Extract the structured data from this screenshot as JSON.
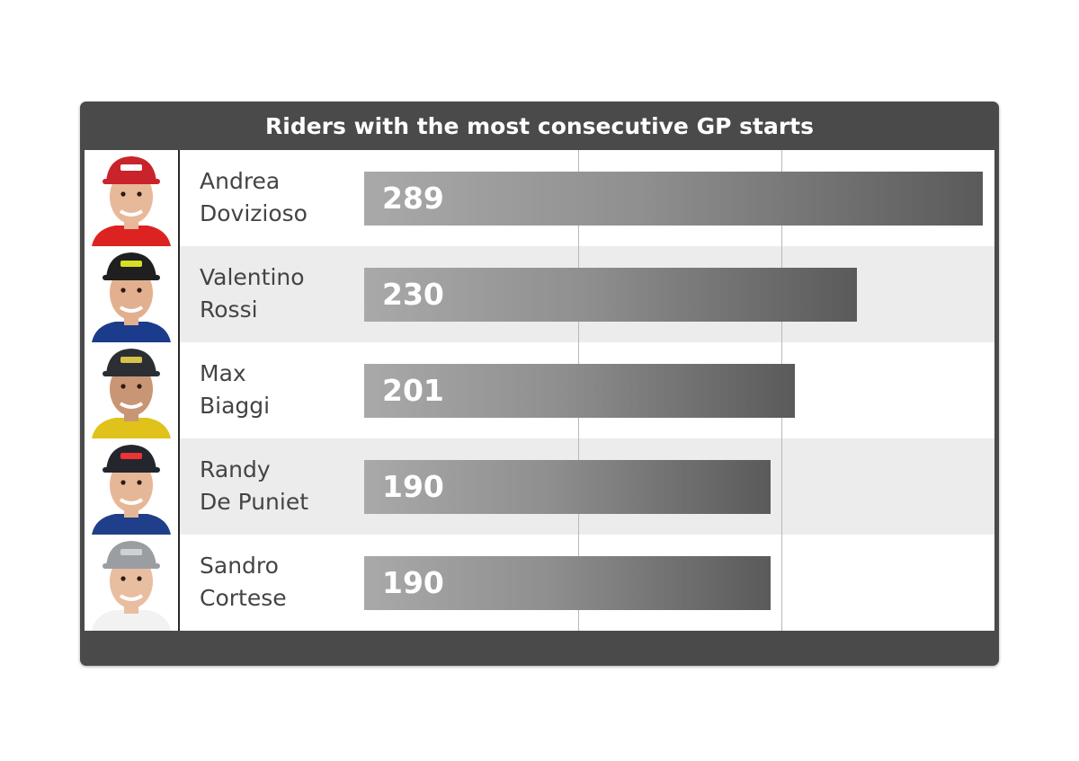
{
  "chart_data": {
    "type": "bar",
    "orientation": "horizontal",
    "title": "Riders with the most consecutive GP starts",
    "categories": [
      {
        "line1": "Andrea",
        "line2": "Dovizioso"
      },
      {
        "line1": "Valentino",
        "line2": "Rossi"
      },
      {
        "line1": "Max",
        "line2": "Biaggi"
      },
      {
        "line1": "Randy",
        "line2": "De Puniet"
      },
      {
        "line1": "Sandro",
        "line2": "Cortese"
      }
    ],
    "values": [
      289,
      230,
      201,
      190,
      190
    ],
    "xlim": [
      0,
      289
    ],
    "grid": true,
    "gridlines": [
      100,
      195
    ],
    "bar_color": "#5a5a5a",
    "header_color": "#4a4a4a",
    "alt_row_color": "#ececec"
  },
  "riders": [
    {
      "avatar": "rider-1-photo"
    },
    {
      "avatar": "rider-2-photo"
    },
    {
      "avatar": "rider-3-photo"
    },
    {
      "avatar": "rider-4-photo"
    },
    {
      "avatar": "rider-5-photo"
    }
  ]
}
